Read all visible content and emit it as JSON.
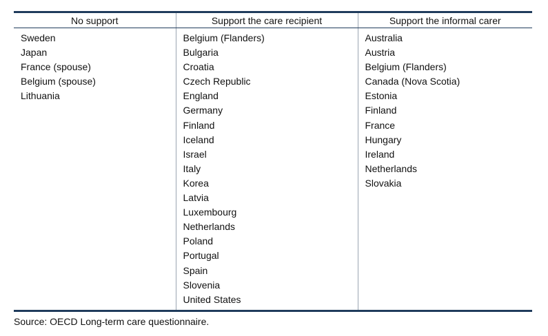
{
  "table": {
    "headers": [
      "No support",
      "Support the care recipient",
      "Support the informal carer"
    ],
    "columns": [
      [
        "Sweden",
        "Japan",
        "France (spouse)",
        "Belgium (spouse)",
        "Lithuania"
      ],
      [
        "Belgium (Flanders)",
        "Bulgaria",
        "Croatia",
        "Czech Republic",
        "England",
        "Germany",
        "Finland",
        "Iceland",
        "Israel",
        "Italy",
        "Korea",
        "Latvia",
        "Luxembourg",
        "Netherlands",
        "Poland",
        "Portugal",
        "Spain",
        "Slovenia",
        "United States"
      ],
      [
        "Australia",
        "Austria",
        "Belgium (Flanders)",
        "Canada (Nova Scotia)",
        "Estonia",
        "Finland",
        "France",
        "Hungary",
        "Ireland",
        "Netherlands",
        "Slovakia"
      ]
    ]
  },
  "source": "Source: OECD Long-term care questionnaire.",
  "colors": {
    "rule": "#1f3b5c",
    "divider": "#9aa5b1"
  }
}
